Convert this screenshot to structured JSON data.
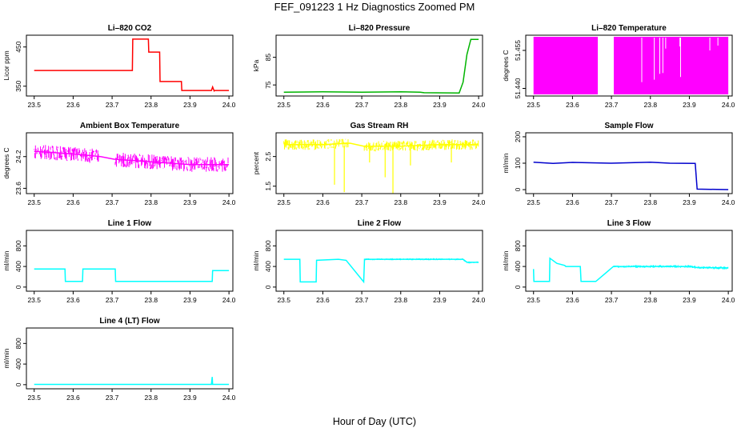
{
  "figure": {
    "title": "FEF_091223  1 Hz Diagnostics Zoomed PM",
    "xlabel": "Hour of Day (UTC)"
  },
  "chart_data": [
    {
      "type": "line",
      "title": "Li–820 CO2",
      "ylabel": "Licor ppm",
      "color": "#ff0000",
      "xlim": [
        23.48,
        24.01
      ],
      "ylim": [
        325,
        480
      ],
      "xticks": [
        "23.5",
        "23.6",
        "23.7",
        "23.8",
        "23.9",
        "24.0"
      ],
      "yticks": [
        "350",
        "450"
      ],
      "series": [
        {
          "x": [
            23.5,
            23.752,
            23.753,
            23.793,
            23.794,
            23.822,
            23.823,
            23.878,
            23.879,
            23.955,
            23.958,
            23.962,
            23.963,
            24.0
          ],
          "y": [
            390,
            390,
            470,
            470,
            437,
            437,
            362,
            362,
            339,
            339,
            348,
            338,
            339,
            339
          ]
        }
      ]
    },
    {
      "type": "line",
      "title": "Li–820 Pressure",
      "ylabel": "kPa",
      "color": "#00b400",
      "xlim": [
        23.48,
        24.01
      ],
      "ylim": [
        71,
        93
      ],
      "xticks": [
        "23.5",
        "23.6",
        "23.7",
        "23.8",
        "23.9",
        "24.0"
      ],
      "yticks": [
        "75",
        "85"
      ],
      "series": [
        {
          "x": [
            23.5,
            23.6,
            23.7,
            23.8,
            23.85,
            23.86,
            23.95,
            23.96,
            23.97,
            23.98,
            24.0
          ],
          "y": [
            72.4,
            72.5,
            72.4,
            72.5,
            72.4,
            72.2,
            72.1,
            76,
            86,
            91.5,
            91.5
          ]
        }
      ]
    },
    {
      "type": "area",
      "title": "Li–820 Temperature",
      "ylabel": "degrees C",
      "color": "#ff00ff",
      "xlim": [
        23.48,
        24.01
      ],
      "ylim": [
        51.437,
        51.461
      ],
      "xticks": [
        "23.5",
        "23.6",
        "23.7",
        "23.8",
        "23.9",
        "24.0"
      ],
      "yticks": [
        "51.440",
        "51.455"
      ],
      "series": [
        {
          "x": [
            23.5,
            23.665,
            23.706,
            24.0
          ],
          "y": [
            51.456,
            51.456,
            51.456,
            51.456
          ]
        }
      ]
    },
    {
      "type": "line",
      "title": "Ambient Box Temperature",
      "ylabel": "degrees C",
      "color": "#ff00ff",
      "xlim": [
        23.48,
        24.01
      ],
      "ylim": [
        23.5,
        24.65
      ],
      "xticks": [
        "23.5",
        "23.6",
        "23.7",
        "23.8",
        "23.9",
        "24.0"
      ],
      "yticks": [
        "23.6",
        "24.2"
      ],
      "series": [
        {
          "x": [
            23.5,
            23.6,
            23.67,
            23.705,
            23.8,
            23.9,
            24.0
          ],
          "y": [
            24.3,
            24.25,
            24.2,
            24.15,
            24.1,
            24.05,
            24.05
          ]
        }
      ]
    },
    {
      "type": "line",
      "title": "Gas Stream RH",
      "ylabel": "percent",
      "color": "#ffff00",
      "xlim": [
        23.48,
        24.01
      ],
      "ylim": [
        1.25,
        3.3
      ],
      "xticks": [
        "23.5",
        "23.6",
        "23.7",
        "23.8",
        "23.9",
        "24.0"
      ],
      "yticks": [
        "1.5",
        "2.5"
      ],
      "series": [
        {
          "x": [
            23.5,
            23.6,
            23.67,
            23.705,
            23.8,
            23.9,
            24.0
          ],
          "y": [
            2.9,
            2.9,
            2.95,
            2.85,
            2.85,
            2.9,
            2.9
          ]
        }
      ]
    },
    {
      "type": "line",
      "title": "Sample Flow",
      "ylabel": "ml/min",
      "color": "#0000cd",
      "xlim": [
        23.48,
        24.01
      ],
      "ylim": [
        -15,
        215
      ],
      "xticks": [
        "23.5",
        "23.6",
        "23.7",
        "23.8",
        "23.9",
        "24.0"
      ],
      "yticks": [
        "0",
        "100",
        "200"
      ],
      "series": [
        {
          "x": [
            23.5,
            23.55,
            23.6,
            23.7,
            23.8,
            23.85,
            23.915,
            23.92,
            24.0
          ],
          "y": [
            104,
            99,
            103,
            100,
            104,
            100,
            99,
            2,
            0
          ]
        }
      ]
    },
    {
      "type": "line",
      "title": "Line 1 Flow",
      "ylabel": "ml/min",
      "color": "#00ffff",
      "xlim": [
        23.48,
        24.01
      ],
      "ylim": [
        -80,
        1100
      ],
      "xticks": [
        "23.5",
        "23.6",
        "23.7",
        "23.8",
        "23.9",
        "24.0"
      ],
      "yticks": [
        "0",
        "400",
        "800"
      ],
      "series": [
        {
          "x": [
            23.5,
            23.579,
            23.58,
            23.624,
            23.625,
            23.708,
            23.709,
            23.957,
            23.958,
            24.0
          ],
          "y": [
            350,
            350,
            110,
            110,
            350,
            350,
            110,
            110,
            320,
            320
          ]
        }
      ]
    },
    {
      "type": "line",
      "title": "Line 2 Flow",
      "ylabel": "ml/min",
      "color": "#00ffff",
      "xlim": [
        23.48,
        24.01
      ],
      "ylim": [
        -80,
        1100
      ],
      "xticks": [
        "23.5",
        "23.6",
        "23.7",
        "23.8",
        "23.9",
        "24.0"
      ],
      "yticks": [
        "0",
        "400",
        "800"
      ],
      "series": [
        {
          "x": [
            23.5,
            23.541,
            23.542,
            23.583,
            23.584,
            23.64,
            23.66,
            23.705,
            23.707,
            23.96,
            23.97,
            24.0
          ],
          "y": [
            540,
            540,
            100,
            100,
            520,
            540,
            520,
            100,
            540,
            540,
            480,
            480
          ]
        }
      ]
    },
    {
      "type": "line",
      "title": "Line 3 Flow",
      "ylabel": "ml/min",
      "color": "#00ffff",
      "xlim": [
        23.48,
        24.01
      ],
      "ylim": [
        -80,
        1100
      ],
      "xticks": [
        "23.5",
        "23.6",
        "23.7",
        "23.8",
        "23.9",
        "24.0"
      ],
      "yticks": [
        "0",
        "400",
        "800"
      ],
      "series": [
        {
          "x": [
            23.5,
            23.501,
            23.502,
            23.541,
            23.542,
            23.56,
            23.58,
            23.583,
            23.62,
            23.622,
            23.66,
            23.705,
            23.9,
            23.92,
            24.0
          ],
          "y": [
            350,
            110,
            110,
            110,
            560,
            460,
            420,
            400,
            400,
            110,
            110,
            400,
            400,
            380,
            370
          ]
        }
      ]
    },
    {
      "type": "line",
      "title": "Line 4 (LT) Flow",
      "ylabel": "ml/min",
      "color": "#00ffff",
      "xlim": [
        23.48,
        24.01
      ],
      "ylim": [
        -80,
        1100
      ],
      "xticks": [
        "23.5",
        "23.6",
        "23.7",
        "23.8",
        "23.9",
        "24.0"
      ],
      "yticks": [
        "0",
        "400",
        "800"
      ],
      "series": [
        {
          "x": [
            23.5,
            23.955,
            23.957,
            23.958,
            23.96,
            24.0
          ],
          "y": [
            5,
            5,
            150,
            5,
            5,
            5
          ]
        }
      ]
    }
  ]
}
